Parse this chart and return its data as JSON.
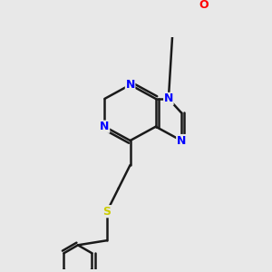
{
  "background_color": "#e8e8e8",
  "bond_color": "#1a1a1a",
  "N_color": "#0000ff",
  "O_color": "#ff0000",
  "S_color": "#cccc00",
  "bond_width": 1.8,
  "figsize": [
    3.0,
    3.0
  ],
  "dpi": 100,
  "xlim": [
    0,
    10
  ],
  "ylim": [
    0,
    10
  ]
}
